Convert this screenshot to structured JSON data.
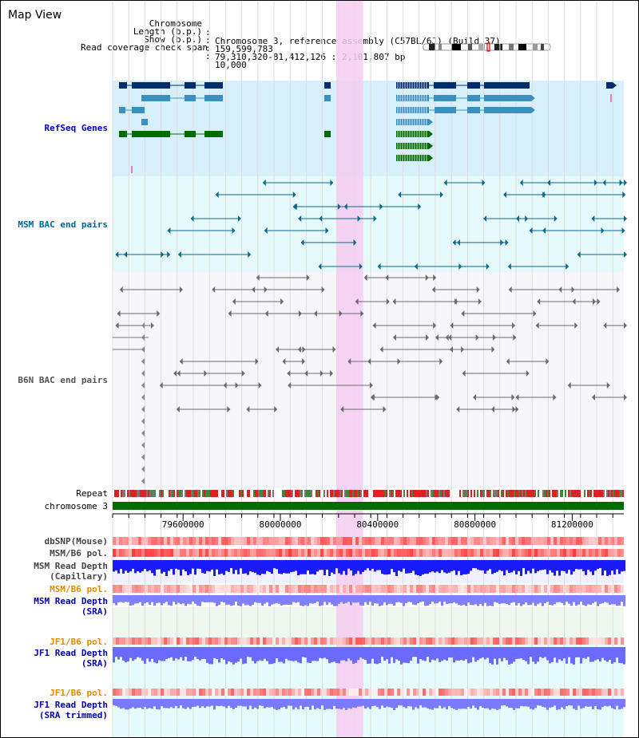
{
  "title": "Map View",
  "header": {
    "rows": [
      {
        "key": "Chromosome",
        "sep": ":",
        "value": "Chromosome 3, reference assembly (C57BL/6J) (Build 37)"
      },
      {
        "key": "Length (b.p.)",
        "sep": ":",
        "value": "159,599,783"
      },
      {
        "key": "Show (b.p.)",
        "sep": ":",
        "value": "79,310,320-81,412,126 : 2,101,807 bp"
      },
      {
        "key": "Read coverage check span",
        "sep": ":",
        "value": "10,000"
      }
    ]
  },
  "tracks": {
    "refseq": {
      "label": "RefSeq Genes",
      "color": "#0000cc"
    },
    "msm_bac": {
      "label": "MSM BAC end pairs",
      "color": "#006699"
    },
    "b6n_bac": {
      "label": "B6N BAC end pairs",
      "color": "#555555"
    },
    "repeat": {
      "label": "Repeat"
    },
    "chromosome": {
      "label": "chromosome 3"
    },
    "dbsnp": {
      "label": "dbSNP(Mouse)"
    },
    "msm_pol": {
      "label": "MSM/B6 pol."
    },
    "msm_depth_cap": {
      "label": "MSM Read Depth\n(Capillary)"
    },
    "msm_pol_sra": {
      "label": "MSM/B6 pol."
    },
    "msm_depth_sra": {
      "label": "MSM Read Depth\n(SRA)"
    },
    "jf1_pol": {
      "label": "JF1/B6 pol."
    },
    "jf1_depth": {
      "label": "JF1 Read Depth\n(SRA)"
    },
    "jf1_pol2": {
      "label": "JF1/B6 pol."
    },
    "jf1_depth_trim": {
      "label": "JF1 Read Depth\n(SRA trimmed)"
    }
  },
  "axis": {
    "ticks": [
      79600000,
      80000000,
      80400000,
      80800000,
      81200000
    ],
    "tick_labels": [
      "79600000",
      "80000000",
      "80400000",
      "80800000",
      "81200000"
    ],
    "range": [
      79310320,
      81412126
    ]
  },
  "highlight": {
    "start": 80230000,
    "end": 80340000,
    "color": "#f5cdf0"
  },
  "colors": {
    "refseq_bg": "#d8f0fb",
    "msm_bg": "#e6f9fb",
    "gene_dark": "#002d6e",
    "gene_mid": "#3a8fc0",
    "gene_green": "#006b00",
    "chrom_green": "#006b00",
    "snp_red": "#ff3b3b",
    "depth_blue": "#1a1aff",
    "depth_light": "#8080ff",
    "pol_label": "#e08a00",
    "depth_label": "#0000aa"
  }
}
